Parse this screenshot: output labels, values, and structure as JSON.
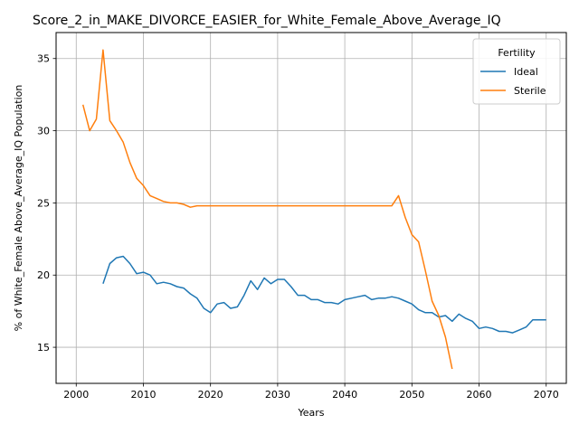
{
  "chart_data": {
    "type": "line",
    "title": "Score_2_in_MAKE_DIVORCE_EASIER_for_White_Female_Above_Average_IQ",
    "xlabel": "Years",
    "ylabel": "% of White_Female Above_Average_IQ Population",
    "xlim": [
      1997,
      2073
    ],
    "ylim": [
      12.5,
      36.8
    ],
    "xticks": [
      2000,
      2010,
      2020,
      2030,
      2040,
      2050,
      2060,
      2070
    ],
    "yticks": [
      15,
      20,
      25,
      30,
      35
    ],
    "grid": true,
    "legend": {
      "title": "Fertility",
      "placement": "top-right"
    },
    "series": [
      {
        "name": "Ideal",
        "color": "#1f77b4",
        "x": [
          2004,
          2005,
          2006,
          2007,
          2008,
          2009,
          2010,
          2011,
          2012,
          2013,
          2014,
          2015,
          2016,
          2017,
          2018,
          2019,
          2020,
          2021,
          2022,
          2023,
          2024,
          2025,
          2026,
          2027,
          2028,
          2029,
          2030,
          2031,
          2032,
          2033,
          2034,
          2035,
          2036,
          2037,
          2038,
          2039,
          2040,
          2041,
          2042,
          2043,
          2044,
          2045,
          2046,
          2047,
          2048,
          2049,
          2050,
          2051,
          2052,
          2053,
          2054,
          2055,
          2056,
          2057,
          2058,
          2059,
          2060,
          2061,
          2062,
          2063,
          2064,
          2065,
          2066,
          2067,
          2068,
          2069,
          2070
        ],
        "values": [
          19.4,
          20.8,
          21.2,
          21.3,
          20.8,
          20.1,
          20.2,
          20.0,
          19.4,
          19.5,
          19.4,
          19.2,
          19.1,
          18.7,
          18.4,
          17.7,
          17.4,
          18.0,
          18.1,
          17.7,
          17.8,
          18.6,
          19.6,
          19.0,
          19.8,
          19.4,
          19.7,
          19.7,
          19.2,
          18.6,
          18.6,
          18.3,
          18.3,
          18.1,
          18.1,
          18.0,
          18.3,
          18.4,
          18.5,
          18.6,
          18.3,
          18.4,
          18.4,
          18.5,
          18.4,
          18.2,
          18.0,
          17.6,
          17.4,
          17.4,
          17.1,
          17.2,
          16.8,
          17.3,
          17.0,
          16.8,
          16.3,
          16.4,
          16.3,
          16.1,
          16.1,
          16.0,
          16.2,
          16.4,
          16.9,
          16.9,
          16.9
        ]
      },
      {
        "name": "Sterile",
        "color": "#ff7f0e",
        "x": [
          2001,
          2002,
          2003,
          2004,
          2005,
          2006,
          2007,
          2008,
          2009,
          2010,
          2011,
          2012,
          2013,
          2014,
          2015,
          2016,
          2017,
          2018,
          2019,
          2020,
          2021,
          2022,
          2023,
          2024,
          2025,
          2026,
          2027,
          2028,
          2029,
          2030,
          2031,
          2032,
          2033,
          2034,
          2035,
          2036,
          2037,
          2038,
          2039,
          2040,
          2041,
          2042,
          2043,
          2044,
          2045,
          2046,
          2047,
          2048,
          2049,
          2050,
          2051,
          2052,
          2053,
          2054,
          2055,
          2056
        ],
        "values": [
          31.8,
          30.0,
          30.8,
          35.6,
          30.7,
          30.0,
          29.2,
          27.8,
          26.7,
          26.2,
          25.5,
          25.3,
          25.1,
          25.0,
          25.0,
          24.9,
          24.7,
          24.8,
          24.8,
          24.8,
          24.8,
          24.8,
          24.8,
          24.8,
          24.8,
          24.8,
          24.8,
          24.8,
          24.8,
          24.8,
          24.8,
          24.8,
          24.8,
          24.8,
          24.8,
          24.8,
          24.8,
          24.8,
          24.8,
          24.8,
          24.8,
          24.8,
          24.8,
          24.8,
          24.8,
          24.8,
          24.8,
          25.5,
          24.0,
          22.8,
          22.3,
          20.3,
          18.2,
          17.2,
          15.7,
          13.5
        ]
      }
    ]
  }
}
